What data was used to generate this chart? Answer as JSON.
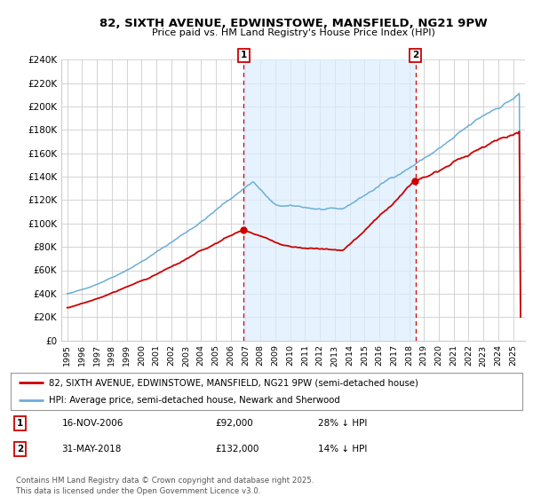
{
  "title": "82, SIXTH AVENUE, EDWINSTOWE, MANSFIELD, NG21 9PW",
  "subtitle": "Price paid vs. HM Land Registry's House Price Index (HPI)",
  "ylim": [
    0,
    240000
  ],
  "yticks": [
    0,
    20000,
    40000,
    60000,
    80000,
    100000,
    120000,
    140000,
    160000,
    180000,
    200000,
    220000,
    240000
  ],
  "ytick_labels": [
    "£0",
    "£20K",
    "£40K",
    "£60K",
    "£80K",
    "£100K",
    "£120K",
    "£140K",
    "£160K",
    "£180K",
    "£200K",
    "£220K",
    "£240K"
  ],
  "hpi_color": "#6baed6",
  "price_color": "#cc0000",
  "vline_color": "#cc0000",
  "shade_color": "#dceeff",
  "marker1_year": 2006.88,
  "marker2_year": 2018.42,
  "sale1_price": 92000,
  "sale2_price": 132000,
  "marker1_label": "1",
  "marker2_label": "2",
  "legend_line1": "82, SIXTH AVENUE, EDWINSTOWE, MANSFIELD, NG21 9PW (semi-detached house)",
  "legend_line2": "HPI: Average price, semi-detached house, Newark and Sherwood",
  "annotation1_date": "16-NOV-2006",
  "annotation1_price": "£92,000",
  "annotation1_hpi": "28% ↓ HPI",
  "annotation2_date": "31-MAY-2018",
  "annotation2_price": "£132,000",
  "annotation2_hpi": "14% ↓ HPI",
  "footer": "Contains HM Land Registry data © Crown copyright and database right 2025.\nThis data is licensed under the Open Government Licence v3.0.",
  "background_color": "#ffffff",
  "grid_color": "#cccccc"
}
